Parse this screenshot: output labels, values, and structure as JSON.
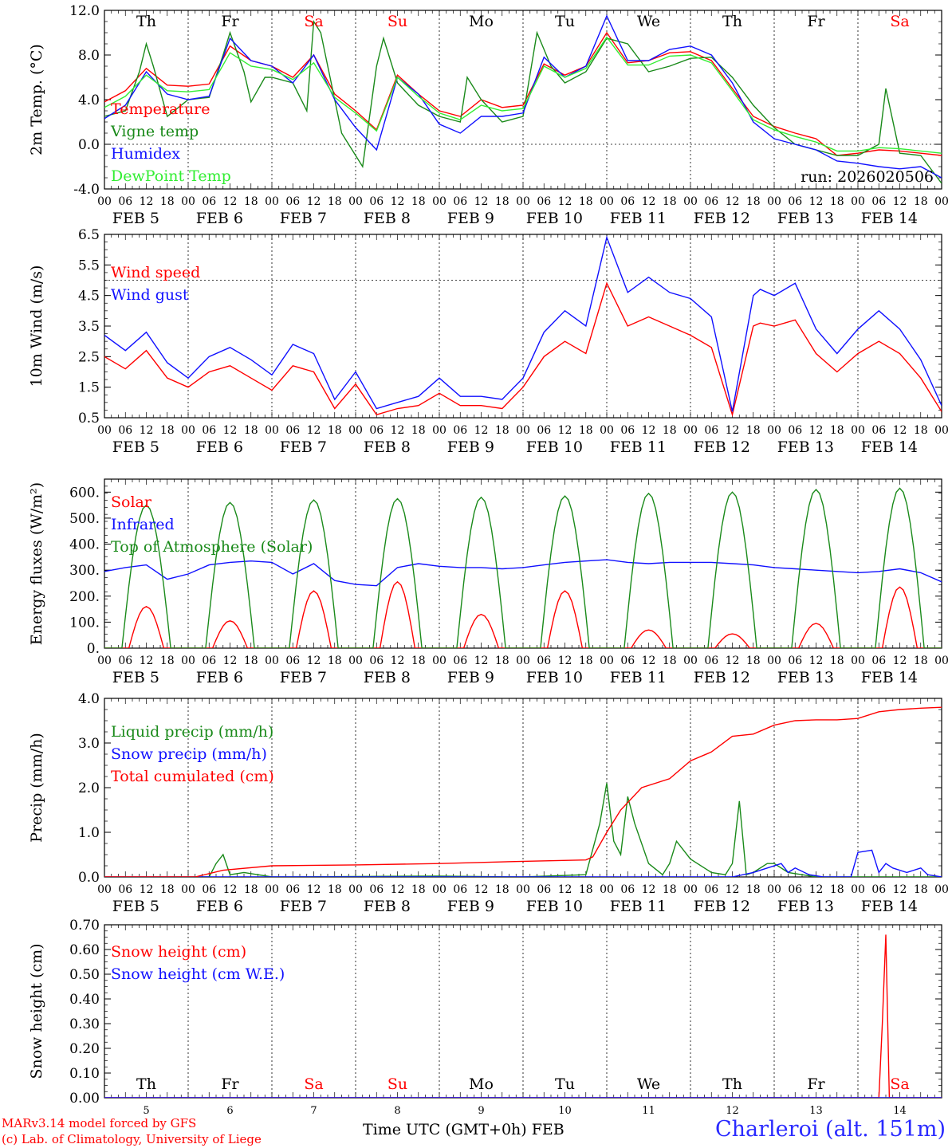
{
  "colors": {
    "red": "#ff0000",
    "green": "#1a8a1a",
    "blue": "#1010ff",
    "lightgreen": "#33ee33",
    "weekend": "#ff0000",
    "text": "#000000"
  },
  "footer": {
    "line1": "MARv3.14 model forced by GFS",
    "line2": "(c) Lab. of Climatology, University of Liege",
    "xtitle": "Time UTC (GMT+0h) FEB",
    "station": "Charleroi (alt. 151m)"
  },
  "days": [
    {
      "abbr": "Th",
      "date": "FEB  5",
      "num": "5",
      "weekend": false
    },
    {
      "abbr": "Fr",
      "date": "FEB  6",
      "num": "6",
      "weekend": false
    },
    {
      "abbr": "Sa",
      "date": "FEB  7",
      "num": "7",
      "weekend": true
    },
    {
      "abbr": "Su",
      "date": "FEB  8",
      "num": "8",
      "weekend": true
    },
    {
      "abbr": "Mo",
      "date": "FEB  9",
      "num": "9",
      "weekend": false
    },
    {
      "abbr": "Tu",
      "date": "FEB 10",
      "num": "10",
      "weekend": false
    },
    {
      "abbr": "We",
      "date": "FEB 11",
      "num": "11",
      "weekend": false
    },
    {
      "abbr": "Th",
      "date": "FEB 12",
      "num": "12",
      "weekend": false
    },
    {
      "abbr": "Fr",
      "date": "FEB 13",
      "num": "13",
      "weekend": false
    },
    {
      "abbr": "Sa",
      "date": "FEB 14",
      "num": "14",
      "weekend": true
    }
  ],
  "hour_ticks": [
    "00",
    "06",
    "12",
    "18"
  ],
  "chart_data": [
    {
      "type": "line",
      "ylabel": "2m Temp. (°C)",
      "ylim": [
        -4,
        12
      ],
      "yticks": [
        "12.0",
        "8.0",
        "4.0",
        "0.0",
        "-4.0"
      ],
      "ref_line": 0,
      "legend_placement": "top-left",
      "annotation": "run: 2026020506",
      "x_unit": "hours since FEB 5 00 UTC",
      "series": [
        {
          "name": "Temperature",
          "color": "red",
          "x": [
            0,
            6,
            12,
            18,
            24,
            30,
            36,
            42,
            48,
            54,
            60,
            66,
            72,
            78,
            84,
            90,
            96,
            102,
            108,
            114,
            120,
            126,
            132,
            138,
            144,
            150,
            156,
            162,
            168,
            174,
            180,
            186,
            192,
            198,
            204,
            210,
            216,
            222,
            228,
            234,
            240
          ],
          "y": [
            3.8,
            4.8,
            6.8,
            5.3,
            5.2,
            5.4,
            8.8,
            7.5,
            7.0,
            6.0,
            8.0,
            4.5,
            3.0,
            1.3,
            6.2,
            4.5,
            3.0,
            2.5,
            4.0,
            3.3,
            3.5,
            7.2,
            6.2,
            7.0,
            10.0,
            7.3,
            7.5,
            8.2,
            8.3,
            7.5,
            5.0,
            2.5,
            1.6,
            1.0,
            0.5,
            -1.0,
            -0.8,
            -0.5,
            -0.6,
            -0.8,
            -1.0
          ]
        },
        {
          "name": "Vigne temp",
          "color": "green",
          "x": [
            0,
            6,
            10,
            12,
            14,
            18,
            24,
            30,
            34,
            36,
            40,
            42,
            46,
            48,
            54,
            58,
            60,
            62,
            66,
            68,
            72,
            74,
            78,
            80,
            84,
            90,
            96,
            102,
            104,
            108,
            114,
            120,
            124,
            126,
            128,
            132,
            138,
            144,
            150,
            156,
            162,
            168,
            174,
            180,
            186,
            192,
            198,
            204,
            210,
            216,
            222,
            224,
            228,
            234,
            240
          ],
          "y": [
            2.5,
            3.0,
            6.5,
            9.0,
            7.0,
            2.5,
            4.0,
            4.2,
            8.0,
            10.0,
            6.5,
            3.8,
            6.0,
            6.0,
            5.5,
            3.0,
            11.0,
            10.0,
            4.0,
            1.0,
            -1.0,
            -2.0,
            7.0,
            9.5,
            5.5,
            3.5,
            2.5,
            2.0,
            6.0,
            4.0,
            2.0,
            2.5,
            10.0,
            8.5,
            7.0,
            5.5,
            6.5,
            9.5,
            9.0,
            6.5,
            7.0,
            7.7,
            7.8,
            6.0,
            3.5,
            1.5,
            0.0,
            -0.5,
            -1.0,
            -1.0,
            0.0,
            5.0,
            -0.8,
            -1.0,
            -3.5
          ]
        },
        {
          "name": "Humidex",
          "color": "blue",
          "x": [
            0,
            6,
            12,
            18,
            24,
            30,
            36,
            42,
            48,
            54,
            60,
            66,
            72,
            78,
            84,
            90,
            96,
            102,
            108,
            114,
            120,
            126,
            132,
            138,
            144,
            150,
            156,
            162,
            168,
            174,
            180,
            186,
            192,
            198,
            204,
            210,
            216,
            222,
            228,
            234,
            240
          ],
          "y": [
            2.3,
            3.5,
            6.5,
            4.5,
            4.0,
            4.3,
            9.5,
            7.5,
            7.0,
            5.5,
            8.0,
            4.0,
            1.5,
            -0.5,
            6.0,
            4.5,
            1.8,
            1.0,
            2.5,
            2.5,
            2.8,
            7.8,
            6.0,
            7.0,
            11.5,
            7.5,
            7.5,
            8.5,
            8.8,
            8.0,
            5.5,
            2.0,
            0.5,
            0.0,
            -0.5,
            -1.5,
            -1.7,
            -2.0,
            -2.2,
            -2.0,
            -3.0
          ]
        },
        {
          "name": "DewPoint Temp",
          "color": "lightgreen",
          "x": [
            0,
            6,
            12,
            18,
            24,
            30,
            36,
            42,
            48,
            54,
            60,
            66,
            72,
            78,
            84,
            90,
            96,
            102,
            108,
            114,
            120,
            126,
            132,
            138,
            144,
            150,
            156,
            162,
            168,
            174,
            180,
            186,
            192,
            198,
            204,
            210,
            216,
            222,
            228,
            234,
            240
          ],
          "y": [
            3.3,
            4.3,
            6.2,
            4.8,
            4.7,
            4.9,
            8.2,
            7.0,
            6.7,
            5.8,
            7.3,
            4.2,
            2.8,
            1.2,
            6.0,
            4.3,
            2.8,
            2.2,
            3.5,
            3.0,
            3.2,
            7.0,
            6.0,
            6.8,
            9.6,
            7.1,
            7.1,
            7.9,
            8.0,
            7.3,
            4.8,
            2.2,
            1.3,
            0.7,
            0.2,
            -0.6,
            -0.6,
            -0.3,
            -0.4,
            -0.6,
            -0.8
          ]
        }
      ]
    },
    {
      "type": "line",
      "ylabel": "10m Wind (m/s)",
      "ylim": [
        0.5,
        6.5
      ],
      "yticks": [
        "6.5",
        "5.5",
        "4.5",
        "3.5",
        "2.5",
        "1.5",
        "0.5"
      ],
      "ref_line": 5,
      "legend_placement": "top-left",
      "series": [
        {
          "name": "Wind speed",
          "color": "red",
          "x": [
            0,
            6,
            12,
            18,
            24,
            30,
            36,
            42,
            48,
            54,
            60,
            66,
            72,
            78,
            84,
            90,
            96,
            102,
            108,
            114,
            120,
            126,
            132,
            138,
            144,
            150,
            156,
            162,
            168,
            174,
            180,
            186,
            188,
            192,
            198,
            204,
            210,
            216,
            222,
            228,
            234,
            240
          ],
          "y": [
            2.5,
            2.1,
            2.7,
            1.8,
            1.5,
            2.0,
            2.2,
            1.8,
            1.4,
            2.2,
            2.0,
            0.8,
            1.6,
            0.6,
            0.8,
            0.9,
            1.3,
            0.9,
            0.9,
            0.8,
            1.5,
            2.5,
            3.0,
            2.6,
            4.9,
            3.5,
            3.8,
            3.5,
            3.2,
            2.8,
            0.6,
            3.5,
            3.6,
            3.5,
            3.7,
            2.6,
            2.0,
            2.6,
            3.0,
            2.6,
            1.8,
            0.7
          ]
        },
        {
          "name": "Wind gust",
          "color": "blue",
          "x": [
            0,
            6,
            12,
            18,
            24,
            30,
            36,
            42,
            48,
            54,
            60,
            66,
            72,
            78,
            84,
            90,
            96,
            102,
            108,
            114,
            120,
            126,
            132,
            138,
            144,
            150,
            156,
            162,
            168,
            174,
            180,
            186,
            188,
            192,
            198,
            204,
            210,
            216,
            222,
            228,
            234,
            240
          ],
          "y": [
            3.2,
            2.7,
            3.3,
            2.3,
            1.8,
            2.5,
            2.8,
            2.4,
            1.9,
            2.9,
            2.6,
            1.1,
            2.0,
            0.8,
            1.0,
            1.2,
            1.8,
            1.2,
            1.2,
            1.1,
            1.8,
            3.3,
            4.0,
            3.5,
            6.4,
            4.6,
            5.1,
            4.6,
            4.4,
            3.8,
            0.7,
            4.5,
            4.7,
            4.5,
            4.9,
            3.4,
            2.6,
            3.4,
            4.0,
            3.4,
            2.4,
            0.9
          ]
        }
      ]
    },
    {
      "type": "line",
      "ylabel": "Energy fluxes (W/m²)",
      "ylim": [
        0,
        650
      ],
      "yticks": [
        "600.",
        "500.",
        "400.",
        "300.",
        "200.",
        "100.",
        "0."
      ],
      "legend_placement": "top-left",
      "series": [
        {
          "name": "Solar",
          "color": "red",
          "peak_hour": 12,
          "peaks": [
            160,
            105,
            220,
            255,
            130,
            220,
            70,
            55,
            95,
            235
          ]
        },
        {
          "name": "Infrared",
          "color": "blue",
          "x": [
            0,
            6,
            12,
            18,
            24,
            30,
            36,
            42,
            48,
            54,
            60,
            66,
            72,
            78,
            84,
            90,
            96,
            102,
            108,
            114,
            120,
            126,
            132,
            138,
            144,
            150,
            156,
            162,
            168,
            174,
            180,
            186,
            192,
            198,
            204,
            210,
            216,
            222,
            228,
            234,
            240
          ],
          "y": [
            295,
            310,
            320,
            265,
            285,
            320,
            330,
            335,
            330,
            285,
            325,
            260,
            245,
            240,
            310,
            325,
            315,
            310,
            310,
            305,
            310,
            320,
            330,
            335,
            340,
            330,
            325,
            330,
            330,
            330,
            325,
            320,
            310,
            305,
            300,
            295,
            290,
            295,
            305,
            290,
            255
          ]
        },
        {
          "name": "Top of Atmosphere (Solar)",
          "color": "green",
          "peak_hour": 12,
          "peaks": [
            550,
            560,
            570,
            575,
            580,
            585,
            595,
            600,
            610,
            615
          ]
        }
      ]
    },
    {
      "type": "line",
      "ylabel": "Precip (mm/h)",
      "ylim": [
        0,
        4
      ],
      "yticks": [
        "4.0",
        "3.0",
        "2.0",
        "1.0",
        "0.0"
      ],
      "legend_placement": "top-left",
      "series": [
        {
          "name": "Liquid precip (mm/h)",
          "color": "green",
          "x": [
            0,
            30,
            32,
            34,
            36,
            40,
            48,
            96,
            120,
            138,
            142,
            144,
            146,
            148,
            150,
            152,
            156,
            160,
            162,
            164,
            168,
            172,
            174,
            178,
            180,
            182,
            184,
            186,
            190,
            192,
            196,
            200,
            204,
            210,
            216,
            240
          ],
          "y": [
            0,
            0,
            0.3,
            0.5,
            0.05,
            0.1,
            0,
            0.02,
            0,
            0.05,
            1.2,
            2.1,
            0.8,
            0.5,
            1.8,
            1.2,
            0.3,
            0.05,
            0.3,
            0.8,
            0.4,
            0.2,
            0.1,
            0.05,
            0.3,
            1.7,
            0.05,
            0.1,
            0.3,
            0.3,
            0.1,
            0.05,
            0,
            0,
            0,
            0
          ]
        },
        {
          "name": "Snow precip (mm/h)",
          "color": "blue",
          "x": [
            0,
            180,
            186,
            190,
            194,
            196,
            198,
            202,
            206,
            208,
            210,
            214,
            216,
            220,
            222,
            224,
            226,
            230,
            234,
            236,
            240
          ],
          "y": [
            0,
            0,
            0.1,
            0.2,
            0.3,
            0.1,
            0.2,
            0.05,
            0,
            0,
            0,
            0,
            0.55,
            0.6,
            0.1,
            0.3,
            0.2,
            0.1,
            0.2,
            0.05,
            0
          ]
        },
        {
          "name": "Total cumulated (cm)",
          "color": "red",
          "x": [
            0,
            26,
            34,
            48,
            72,
            96,
            120,
            138,
            140,
            144,
            148,
            154,
            162,
            168,
            174,
            180,
            186,
            192,
            198,
            204,
            210,
            216,
            222,
            228,
            234,
            240
          ],
          "y": [
            0,
            0,
            0.15,
            0.25,
            0.27,
            0.3,
            0.35,
            0.38,
            0.45,
            1.0,
            1.5,
            2.0,
            2.2,
            2.6,
            2.8,
            3.15,
            3.2,
            3.4,
            3.5,
            3.52,
            3.52,
            3.55,
            3.7,
            3.75,
            3.78,
            3.8
          ]
        }
      ]
    },
    {
      "type": "line",
      "ylabel": "Snow height (cm)",
      "ylim": [
        0,
        0.7
      ],
      "yticks": [
        "0.70",
        "0.60",
        "0.50",
        "0.40",
        "0.30",
        "0.20",
        "0.10",
        "0.00"
      ],
      "legend_placement": "top-left",
      "series": [
        {
          "name": "Snow height (cm)",
          "color": "red",
          "x": [
            0,
            222,
            223,
            224,
            225,
            240
          ],
          "y": [
            0,
            0,
            0.3,
            0.66,
            0,
            0
          ]
        },
        {
          "name": "Snow height (cm W.E.)",
          "color": "blue",
          "x": [
            0,
            240
          ],
          "y": [
            0,
            0
          ]
        }
      ]
    }
  ]
}
